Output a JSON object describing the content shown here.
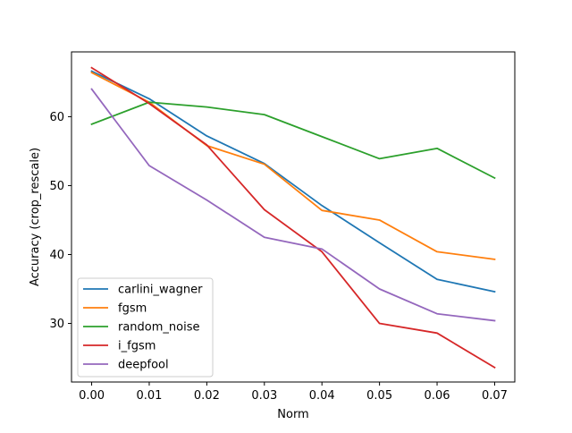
{
  "chart_data": {
    "type": "line",
    "title": "",
    "xlabel": "Norm",
    "ylabel": "Accuracy (crop_rescale)",
    "x": [
      0.0,
      0.01,
      0.02,
      0.03,
      0.04,
      0.05,
      0.06,
      0.07
    ],
    "x_tick_labels": [
      "0.00",
      "0.01",
      "0.02",
      "0.03",
      "0.04",
      "0.05",
      "0.06",
      "0.07"
    ],
    "y_ticks": [
      30,
      40,
      50,
      60
    ],
    "y_tick_labels": [
      "30",
      "40",
      "50",
      "60"
    ],
    "xlim": [
      -0.0035,
      0.0735
    ],
    "ylim": [
      21.5,
      69.4
    ],
    "grid": false,
    "legend_position": "lower-left",
    "series": [
      {
        "name": "carlini_wagner",
        "color": "#1f77b4",
        "values": [
          66.6,
          62.6,
          57.2,
          53.2,
          47.1,
          41.7,
          36.4,
          34.6
        ]
      },
      {
        "name": "fgsm",
        "color": "#ff7f0e",
        "values": [
          66.4,
          62.1,
          55.8,
          53.1,
          46.4,
          45.0,
          40.4,
          39.3
        ]
      },
      {
        "name": "random_noise",
        "color": "#2ca02c",
        "values": [
          58.9,
          62.1,
          61.4,
          60.3,
          57.1,
          53.9,
          55.4,
          51.1
        ]
      },
      {
        "name": "i_fgsm",
        "color": "#d62728",
        "values": [
          67.1,
          61.9,
          55.9,
          46.5,
          40.4,
          30.0,
          28.6,
          23.6
        ]
      },
      {
        "name": "deepfool",
        "color": "#9467bd",
        "values": [
          64.0,
          52.9,
          47.9,
          42.5,
          40.8,
          35.0,
          31.4,
          30.4
        ]
      }
    ]
  }
}
